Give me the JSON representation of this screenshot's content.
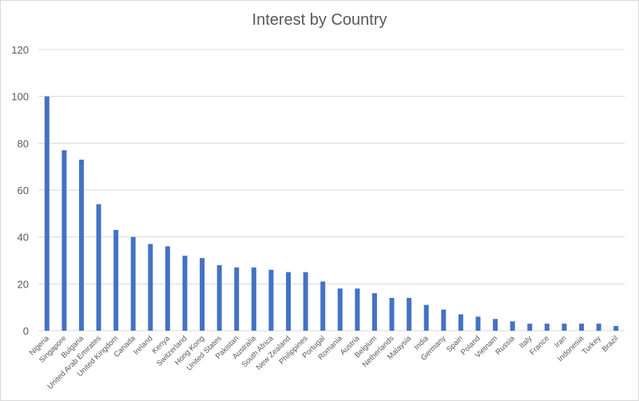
{
  "chart_data": {
    "type": "bar",
    "title": "Interest by Country",
    "xlabel": "",
    "ylabel": "",
    "ylim": [
      0,
      120
    ],
    "yticks": [
      0,
      20,
      40,
      60,
      80,
      100,
      120
    ],
    "grid": true,
    "legend": "none",
    "bar_color": "#4472c4",
    "categories": [
      "Nigeria",
      "Singapore",
      "Bulgaria",
      "United Arab Emirates",
      "United Kingdom",
      "Canada",
      "Ireland",
      "Kenya",
      "Switzerland",
      "Hong Kong",
      "United States",
      "Pakistan",
      "Australia",
      "South Africa",
      "New Zealand",
      "Philippines",
      "Portugal",
      "Romania",
      "Austria",
      "Belgium",
      "Netherlands",
      "Malaysia",
      "India",
      "Germany",
      "Spain",
      "Poland",
      "Vietnam",
      "Russia",
      "Italy",
      "France",
      "Iran",
      "Indonesia",
      "Turkey",
      "Brazil"
    ],
    "values": [
      100,
      77,
      73,
      54,
      43,
      40,
      37,
      36,
      32,
      31,
      28,
      27,
      27,
      26,
      25,
      25,
      21,
      18,
      18,
      16,
      14,
      14,
      11,
      9,
      7,
      6,
      5,
      4,
      3,
      3,
      3,
      3,
      3,
      2
    ]
  }
}
